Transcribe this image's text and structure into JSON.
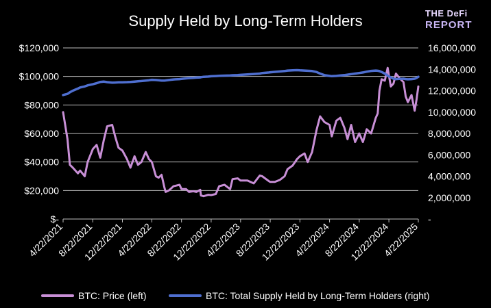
{
  "brand": {
    "name": "THE DeFi REPORT",
    "line1": "THE DeFi",
    "line2": "REPORT"
  },
  "colors": {
    "background": "#000000",
    "price": "#c88fd6",
    "supply": "#4f6fd0",
    "grid": "#bfbfbf",
    "text": "#ffffff"
  },
  "chart_data": {
    "type": "line",
    "title": "Supply Held by Long-Term Holders",
    "x": [
      "2021-04-22",
      "2021-05-10",
      "2021-05-20",
      "2021-06-01",
      "2021-06-22",
      "2021-07-01",
      "2021-07-20",
      "2021-08-01",
      "2021-08-22",
      "2021-09-07",
      "2021-09-22",
      "2021-10-06",
      "2021-10-20",
      "2021-11-10",
      "2021-11-22",
      "2021-12-06",
      "2021-12-22",
      "2022-01-10",
      "2022-01-24",
      "2022-02-10",
      "2022-02-24",
      "2022-03-10",
      "2022-03-28",
      "2022-04-10",
      "2022-04-22",
      "2022-05-09",
      "2022-05-20",
      "2022-06-01",
      "2022-06-13",
      "2022-06-18",
      "2022-07-01",
      "2022-07-20",
      "2022-08-14",
      "2022-08-22",
      "2022-09-10",
      "2022-09-22",
      "2022-10-10",
      "2022-10-22",
      "2022-11-07",
      "2022-11-10",
      "2022-11-21",
      "2022-12-10",
      "2022-12-22",
      "2023-01-10",
      "2023-01-24",
      "2023-02-15",
      "2023-03-10",
      "2023-03-20",
      "2023-04-10",
      "2023-04-22",
      "2023-05-20",
      "2023-06-15",
      "2023-07-10",
      "2023-07-20",
      "2023-08-17",
      "2023-08-22",
      "2023-09-10",
      "2023-10-01",
      "2023-10-20",
      "2023-11-01",
      "2023-11-22",
      "2023-12-10",
      "2023-12-22",
      "2024-01-10",
      "2024-01-23",
      "2024-02-10",
      "2024-02-28",
      "2024-03-14",
      "2024-04-01",
      "2024-04-22",
      "2024-05-01",
      "2024-05-20",
      "2024-06-05",
      "2024-06-22",
      "2024-07-05",
      "2024-07-20",
      "2024-08-05",
      "2024-08-22",
      "2024-09-06",
      "2024-09-22",
      "2024-10-10",
      "2024-10-29",
      "2024-11-06",
      "2024-11-13",
      "2024-11-22",
      "2024-12-05",
      "2024-12-17",
      "2024-12-30",
      "2025-01-10",
      "2025-01-20",
      "2025-02-03",
      "2025-02-20",
      "2025-03-01",
      "2025-03-10",
      "2025-03-25",
      "2025-04-07",
      "2025-04-15",
      "2025-04-22"
    ],
    "series": [
      {
        "name": "BTC: Price (left)",
        "axis": "left",
        "values": [
          75000,
          56000,
          38000,
          36000,
          32000,
          34000,
          30000,
          40000,
          49000,
          52000,
          43000,
          55000,
          65000,
          66000,
          58000,
          50000,
          48000,
          42000,
          36000,
          44000,
          38000,
          40000,
          47000,
          42000,
          40000,
          30000,
          29000,
          31000,
          22000,
          19000,
          20000,
          23000,
          24000,
          21000,
          21000,
          19000,
          19500,
          19000,
          20500,
          16500,
          16000,
          17000,
          16800,
          17500,
          23000,
          24000,
          21000,
          28000,
          28500,
          27000,
          27000,
          25000,
          30500,
          30000,
          26500,
          26000,
          26000,
          27500,
          30000,
          35000,
          37500,
          42000,
          44000,
          46000,
          40000,
          47000,
          62000,
          72000,
          68000,
          66000,
          58000,
          69000,
          71000,
          64000,
          56000,
          66000,
          54000,
          60000,
          54000,
          63000,
          60000,
          71000,
          74000,
          90000,
          98000,
          97000,
          106000,
          93000,
          95000,
          102000,
          99000,
          96000,
          86000,
          82000,
          87000,
          76000,
          84000,
          93000
        ]
      },
      {
        "name": "BTC: Total Supply Held by Long-Term Holders (right)",
        "axis": "right",
        "values": [
          11600000,
          11700000,
          11850000,
          12000000,
          12200000,
          12300000,
          12400000,
          12500000,
          12600000,
          12700000,
          12820000,
          12850000,
          12800000,
          12750000,
          12760000,
          12780000,
          12790000,
          12800000,
          12820000,
          12850000,
          12880000,
          12900000,
          12950000,
          12980000,
          13020000,
          13000000,
          12980000,
          12950000,
          12940000,
          12960000,
          13000000,
          13050000,
          13080000,
          13100000,
          13150000,
          13180000,
          13200000,
          13220000,
          13240000,
          13260000,
          13300000,
          13320000,
          13350000,
          13370000,
          13390000,
          13410000,
          13420000,
          13440000,
          13460000,
          13480000,
          13520000,
          13560000,
          13600000,
          13650000,
          13700000,
          13720000,
          13760000,
          13800000,
          13840000,
          13880000,
          13900000,
          13920000,
          13900000,
          13880000,
          13860000,
          13840000,
          13750000,
          13600000,
          13450000,
          13380000,
          13360000,
          13380000,
          13420000,
          13450000,
          13500000,
          13550000,
          13600000,
          13650000,
          13700000,
          13780000,
          13850000,
          13880000,
          13860000,
          13830000,
          13750000,
          13600000,
          13400000,
          13250000,
          13120000,
          13080000,
          13100000,
          13120000,
          13080000,
          13060000,
          13080000,
          13120000,
          13200000,
          13300000
        ]
      }
    ],
    "left_axis": {
      "ylim": [
        0,
        120000
      ],
      "ticks": [
        "$-",
        "$20,000",
        "$40,000",
        "$60,000",
        "$80,000",
        "$100,000",
        "$120,000"
      ],
      "tick_values": [
        0,
        20000,
        40000,
        60000,
        80000,
        100000,
        120000
      ]
    },
    "right_axis": {
      "ylim": [
        0,
        16000000
      ],
      "ticks": [
        "-",
        "2,000,000",
        "4,000,000",
        "6,000,000",
        "8,000,000",
        "10,000,000",
        "12,000,000",
        "14,000,000",
        "16,000,000"
      ],
      "tick_values": [
        0,
        2000000,
        4000000,
        6000000,
        8000000,
        10000000,
        12000000,
        14000000,
        16000000
      ]
    },
    "x_ticks": [
      "4/22/2021",
      "8/22/2021",
      "12/22/2021",
      "4/22/2022",
      "8/22/2022",
      "12/22/2022",
      "4/22/2023",
      "8/22/2023",
      "12/22/2023",
      "4/22/2024",
      "8/22/2024",
      "12/22/2024",
      "4/22/2025"
    ],
    "x_tick_dates": [
      "2021-04-22",
      "2021-08-22",
      "2021-12-22",
      "2022-04-22",
      "2022-08-22",
      "2022-12-22",
      "2023-04-22",
      "2023-08-22",
      "2023-12-22",
      "2024-04-22",
      "2024-08-22",
      "2024-12-22",
      "2025-04-22"
    ],
    "legend": {
      "placement": "bottom",
      "entries": [
        "BTC: Price (left)",
        "BTC: Total Supply Held by Long-Term Holders (right)"
      ]
    },
    "grid": true
  }
}
